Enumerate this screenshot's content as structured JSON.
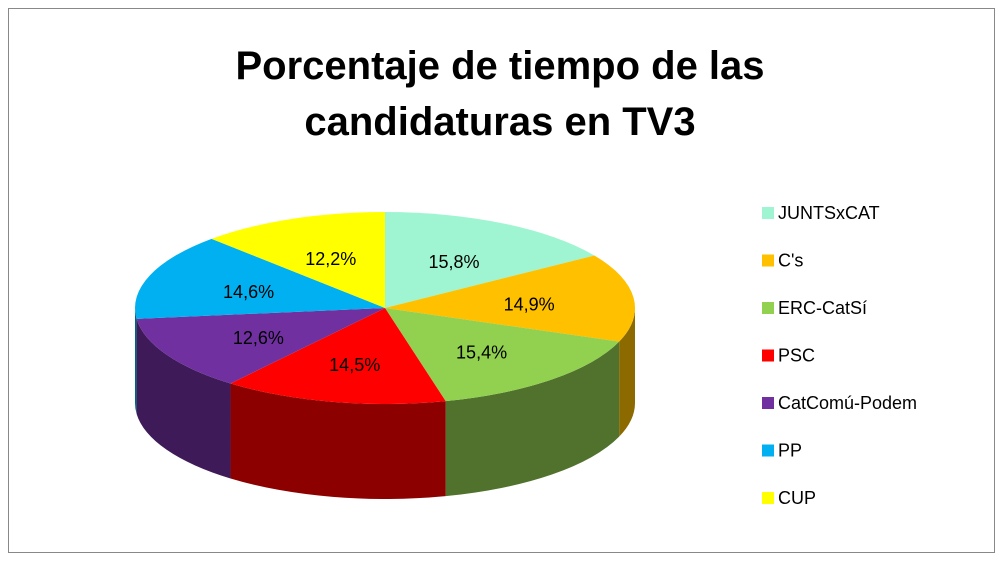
{
  "chart_data": {
    "type": "pie3d",
    "title": "Porcentaje de tiempo de las candidaturas en TV3",
    "categories": [
      "JUNTSxCAT",
      "C's",
      "ERC-CatSí",
      "PSC",
      "CatComú-Podem",
      "PP",
      "CUP"
    ],
    "values": [
      15.8,
      14.9,
      15.4,
      14.5,
      12.6,
      14.6,
      12.2
    ],
    "value_labels": [
      "15,8%",
      "14,9%",
      "15,4%",
      "14,5%",
      "12,6%",
      "14,6%",
      "12,2%"
    ],
    "colors": [
      "#9ff5d2",
      "#ffc000",
      "#92d050",
      "#ff0000",
      "#7030a0",
      "#00b0f0",
      "#ffff00"
    ],
    "legend": "right"
  }
}
